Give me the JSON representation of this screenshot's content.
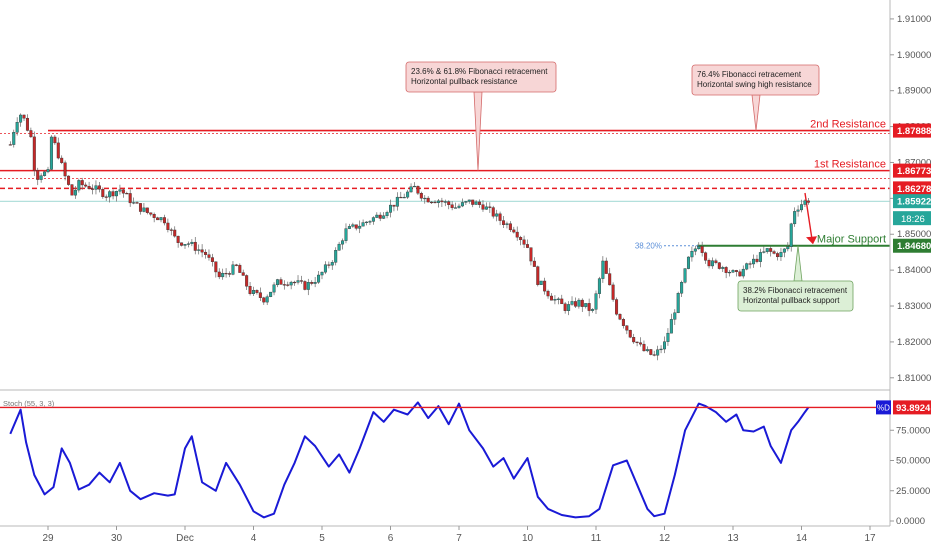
{
  "chart_data": [
    {
      "type": "candlestick",
      "price_axis": {
        "ylim": [
          1.8066,
          1.9136
        ],
        "ticks": [
          "1.91000",
          "1.90000",
          "1.89000",
          "1.88000",
          "1.87000",
          "1.86000",
          "1.85000",
          "1.84000",
          "1.83000",
          "1.82000",
          "1.81000"
        ]
      },
      "time_axis": {
        "ticks": [
          {
            "label": "29",
            "day": 0
          },
          {
            "label": "30",
            "day": 1
          },
          {
            "label": "Dec",
            "day": 2
          },
          {
            "label": "4",
            "day": 3
          },
          {
            "label": "5",
            "day": 4
          },
          {
            "label": "6",
            "day": 5
          },
          {
            "label": "7",
            "day": 6
          },
          {
            "label": "10",
            "day": 7
          },
          {
            "label": "11",
            "day": 8
          },
          {
            "label": "12",
            "day": 9
          },
          {
            "label": "13",
            "day": 10
          },
          {
            "label": "14",
            "day": 11
          },
          {
            "label": "17",
            "day": 12
          }
        ]
      },
      "price_path": [
        [
          -0.55,
          1.875
        ],
        [
          -0.5,
          1.879
        ],
        [
          -0.42,
          1.884
        ],
        [
          -0.35,
          1.882
        ],
        [
          -0.25,
          1.877
        ],
        [
          -0.18,
          1.8655
        ],
        [
          -0.1,
          1.867
        ],
        [
          0.02,
          1.867
        ],
        [
          0.05,
          1.877
        ],
        [
          0.12,
          1.874
        ],
        [
          0.25,
          1.866
        ],
        [
          0.35,
          1.861
        ],
        [
          0.45,
          1.864
        ],
        [
          0.65,
          1.863
        ],
        [
          0.85,
          1.861
        ],
        [
          1.05,
          1.8625
        ],
        [
          1.25,
          1.8585
        ],
        [
          1.45,
          1.856
        ],
        [
          1.7,
          1.854
        ],
        [
          1.88,
          1.848
        ],
        [
          2.05,
          1.8475
        ],
        [
          2.3,
          1.8445
        ],
        [
          2.5,
          1.838
        ],
        [
          2.75,
          1.841
        ],
        [
          2.95,
          1.834
        ],
        [
          3.15,
          1.832
        ],
        [
          3.35,
          1.8365
        ],
        [
          3.55,
          1.837
        ],
        [
          3.75,
          1.8355
        ],
        [
          3.95,
          1.838
        ],
        [
          4.15,
          1.843
        ],
        [
          4.35,
          1.851
        ],
        [
          4.6,
          1.853
        ],
        [
          4.85,
          1.8555
        ],
        [
          5.05,
          1.8585
        ],
        [
          5.35,
          1.863
        ],
        [
          5.5,
          1.86
        ],
        [
          5.7,
          1.8595
        ],
        [
          5.95,
          1.8575
        ],
        [
          6.15,
          1.859
        ],
        [
          6.35,
          1.858
        ],
        [
          6.6,
          1.854
        ],
        [
          6.8,
          1.8515
        ],
        [
          7.0,
          1.8465
        ],
        [
          7.15,
          1.837
        ],
        [
          7.35,
          1.8325
        ],
        [
          7.55,
          1.8295
        ],
        [
          7.75,
          1.831
        ],
        [
          7.95,
          1.8285
        ],
        [
          8.1,
          1.842
        ],
        [
          8.3,
          1.8285
        ],
        [
          8.5,
          1.822
        ],
        [
          8.7,
          1.8175
        ],
        [
          8.85,
          1.816
        ],
        [
          9.0,
          1.8195
        ],
        [
          9.15,
          1.829
        ],
        [
          9.35,
          1.843
        ],
        [
          9.5,
          1.8475
        ],
        [
          9.65,
          1.842
        ],
        [
          9.85,
          1.841
        ],
        [
          10.05,
          1.8385
        ],
        [
          10.3,
          1.8425
        ],
        [
          10.5,
          1.8455
        ],
        [
          10.6,
          1.8445
        ],
        [
          10.7,
          1.8445
        ],
        [
          10.8,
          1.8465
        ],
        [
          10.88,
          1.8565
        ],
        [
          11.0,
          1.8585
        ],
        [
          11.12,
          1.8598
        ]
      ],
      "levels": [
        {
          "name": "2nd Resistance",
          "value": 1.87888,
          "label": "1.87888",
          "color": "#e51c23"
        },
        {
          "name": "1st Resistance",
          "value": 1.86773,
          "label": "1.86773",
          "color": "#e51c23"
        },
        {
          "name": "",
          "value": 1.86278,
          "label": "1.86278",
          "color": "#e51c23"
        },
        {
          "name": "Major Support",
          "value": 1.8468,
          "label": "1.84680",
          "color": "#2e7d32"
        }
      ],
      "last_price": {
        "value": 1.85922,
        "label": "1.85922",
        "countdown": "18:26"
      },
      "annotations": [
        {
          "label": "38.20%",
          "value": 1.8468,
          "color": "#5b8fd8"
        }
      ],
      "callouts": [
        {
          "lines": [
            "23.6% & 61.8% Fibonacci retracement",
            "Horizontal pullback resistance"
          ],
          "style": "red"
        },
        {
          "lines": [
            "76.4% Fibonacci retracement",
            "Horizontal swing high resistance"
          ],
          "style": "red"
        },
        {
          "lines": [
            "38.2% Fibonacci retracement",
            "Horizontal pullback support"
          ],
          "style": "green"
        }
      ],
      "colors": {
        "up": "#26a69a",
        "down": "#c62828",
        "body": "#333333",
        "resistance": "#e51c23",
        "support": "#2e7d32",
        "label_bg": "#e51c23",
        "support_label_bg": "#2e7d32",
        "price_label_bg": "#26a69a"
      }
    },
    {
      "type": "line",
      "name": "Stoch (55, 3, 3)",
      "ylim": [
        0,
        100
      ],
      "ticks": [
        "75.0000",
        "50.0000",
        "25.0000",
        "0.0000"
      ],
      "series": [
        {
          "name": "%D",
          "line_color": "#1a1ad6",
          "x": [
            -0.55,
            -0.4,
            -0.32,
            -0.2,
            -0.05,
            0.08,
            0.2,
            0.32,
            0.45,
            0.6,
            0.75,
            0.9,
            1.05,
            1.2,
            1.35,
            1.55,
            1.75,
            1.85,
            2.0,
            2.1,
            2.25,
            2.45,
            2.6,
            2.8,
            3.0,
            3.15,
            3.3,
            3.45,
            3.6,
            3.75,
            3.9,
            4.1,
            4.25,
            4.4,
            4.55,
            4.75,
            4.9,
            5.05,
            5.25,
            5.4,
            5.55,
            5.7,
            5.85,
            6.0,
            6.15,
            6.35,
            6.5,
            6.65,
            6.8,
            7.0,
            7.15,
            7.3,
            7.5,
            7.7,
            7.9,
            8.05,
            8.25,
            8.45,
            8.6,
            8.75,
            8.85,
            9.0,
            9.15,
            9.3,
            9.5,
            9.6,
            9.75,
            9.9,
            10.05,
            10.15,
            10.3,
            10.45,
            10.55,
            10.7,
            10.85,
            10.95,
            11.05,
            11.1
          ],
          "values": [
            72,
            92,
            65,
            38,
            22,
            28,
            60,
            48,
            26,
            30,
            40,
            32,
            48,
            25,
            18,
            23,
            21,
            22,
            60,
            70,
            32,
            25,
            48,
            30,
            8,
            3,
            6,
            30,
            48,
            70,
            62,
            45,
            55,
            40,
            60,
            90,
            82,
            92,
            88,
            98,
            85,
            95,
            80,
            97,
            75,
            60,
            45,
            52,
            35,
            52,
            20,
            10,
            5,
            3,
            4,
            10,
            46,
            50,
            30,
            10,
            4,
            6,
            38,
            75,
            97,
            95,
            90,
            82,
            88,
            75,
            74,
            78,
            62,
            48,
            75,
            82,
            90,
            93.89
          ]
        }
      ],
      "last_value": {
        "label": "93.8924",
        "tag": "%D"
      },
      "level_line": {
        "value": 93.8924,
        "color": "#e51c23"
      }
    }
  ]
}
